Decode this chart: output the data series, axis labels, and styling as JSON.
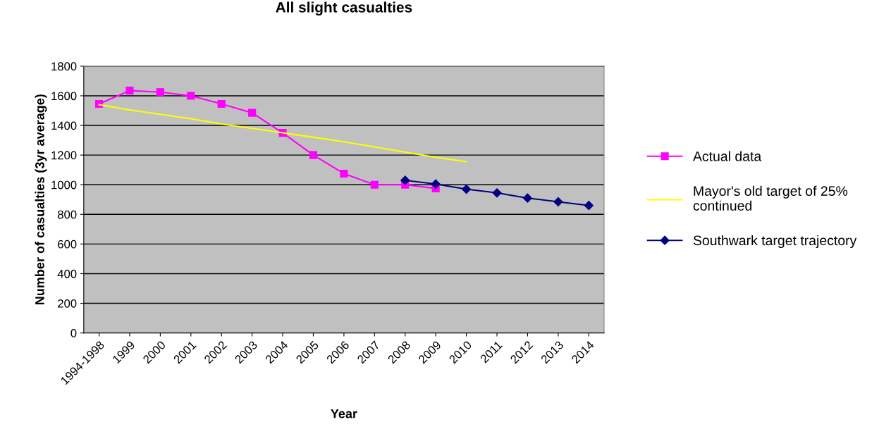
{
  "chart_data": {
    "type": "line",
    "title": "All slight casualties",
    "xlabel": "Year",
    "ylabel": "Number of casualties (3yr average)",
    "categories": [
      "1994-1998",
      "1999",
      "2000",
      "2001",
      "2002",
      "2003",
      "2004",
      "2005",
      "2006",
      "2007",
      "2008",
      "2009",
      "2010",
      "2011",
      "2012",
      "2013",
      "2014"
    ],
    "series": [
      {
        "name": "Actual data",
        "color": "#ff00ff",
        "marker": "square",
        "values": [
          1545,
          1635,
          1625,
          1600,
          1545,
          1485,
          1350,
          1200,
          1075,
          1000,
          1000,
          975,
          null,
          null,
          null,
          null,
          null
        ]
      },
      {
        "name": "Mayor's old target of 25%\ncontinued",
        "color": "#ffff00",
        "marker": "none",
        "values": [
          1540,
          1505,
          1475,
          1445,
          1410,
          1380,
          1350,
          1320,
          1290,
          1255,
          1220,
          1185,
          1155,
          null,
          null,
          null,
          null
        ]
      },
      {
        "name": "Southwark target trajectory",
        "color": "#000080",
        "marker": "diamond",
        "values": [
          null,
          null,
          null,
          null,
          null,
          null,
          null,
          null,
          null,
          null,
          1030,
          1005,
          970,
          945,
          910,
          885,
          860
        ]
      }
    ],
    "ylim": [
      0,
      1800
    ],
    "yticks": [
      0,
      200,
      400,
      600,
      800,
      1000,
      1200,
      1400,
      1600,
      1800
    ],
    "grid": "y",
    "legend": "right",
    "line_style": "solid"
  }
}
